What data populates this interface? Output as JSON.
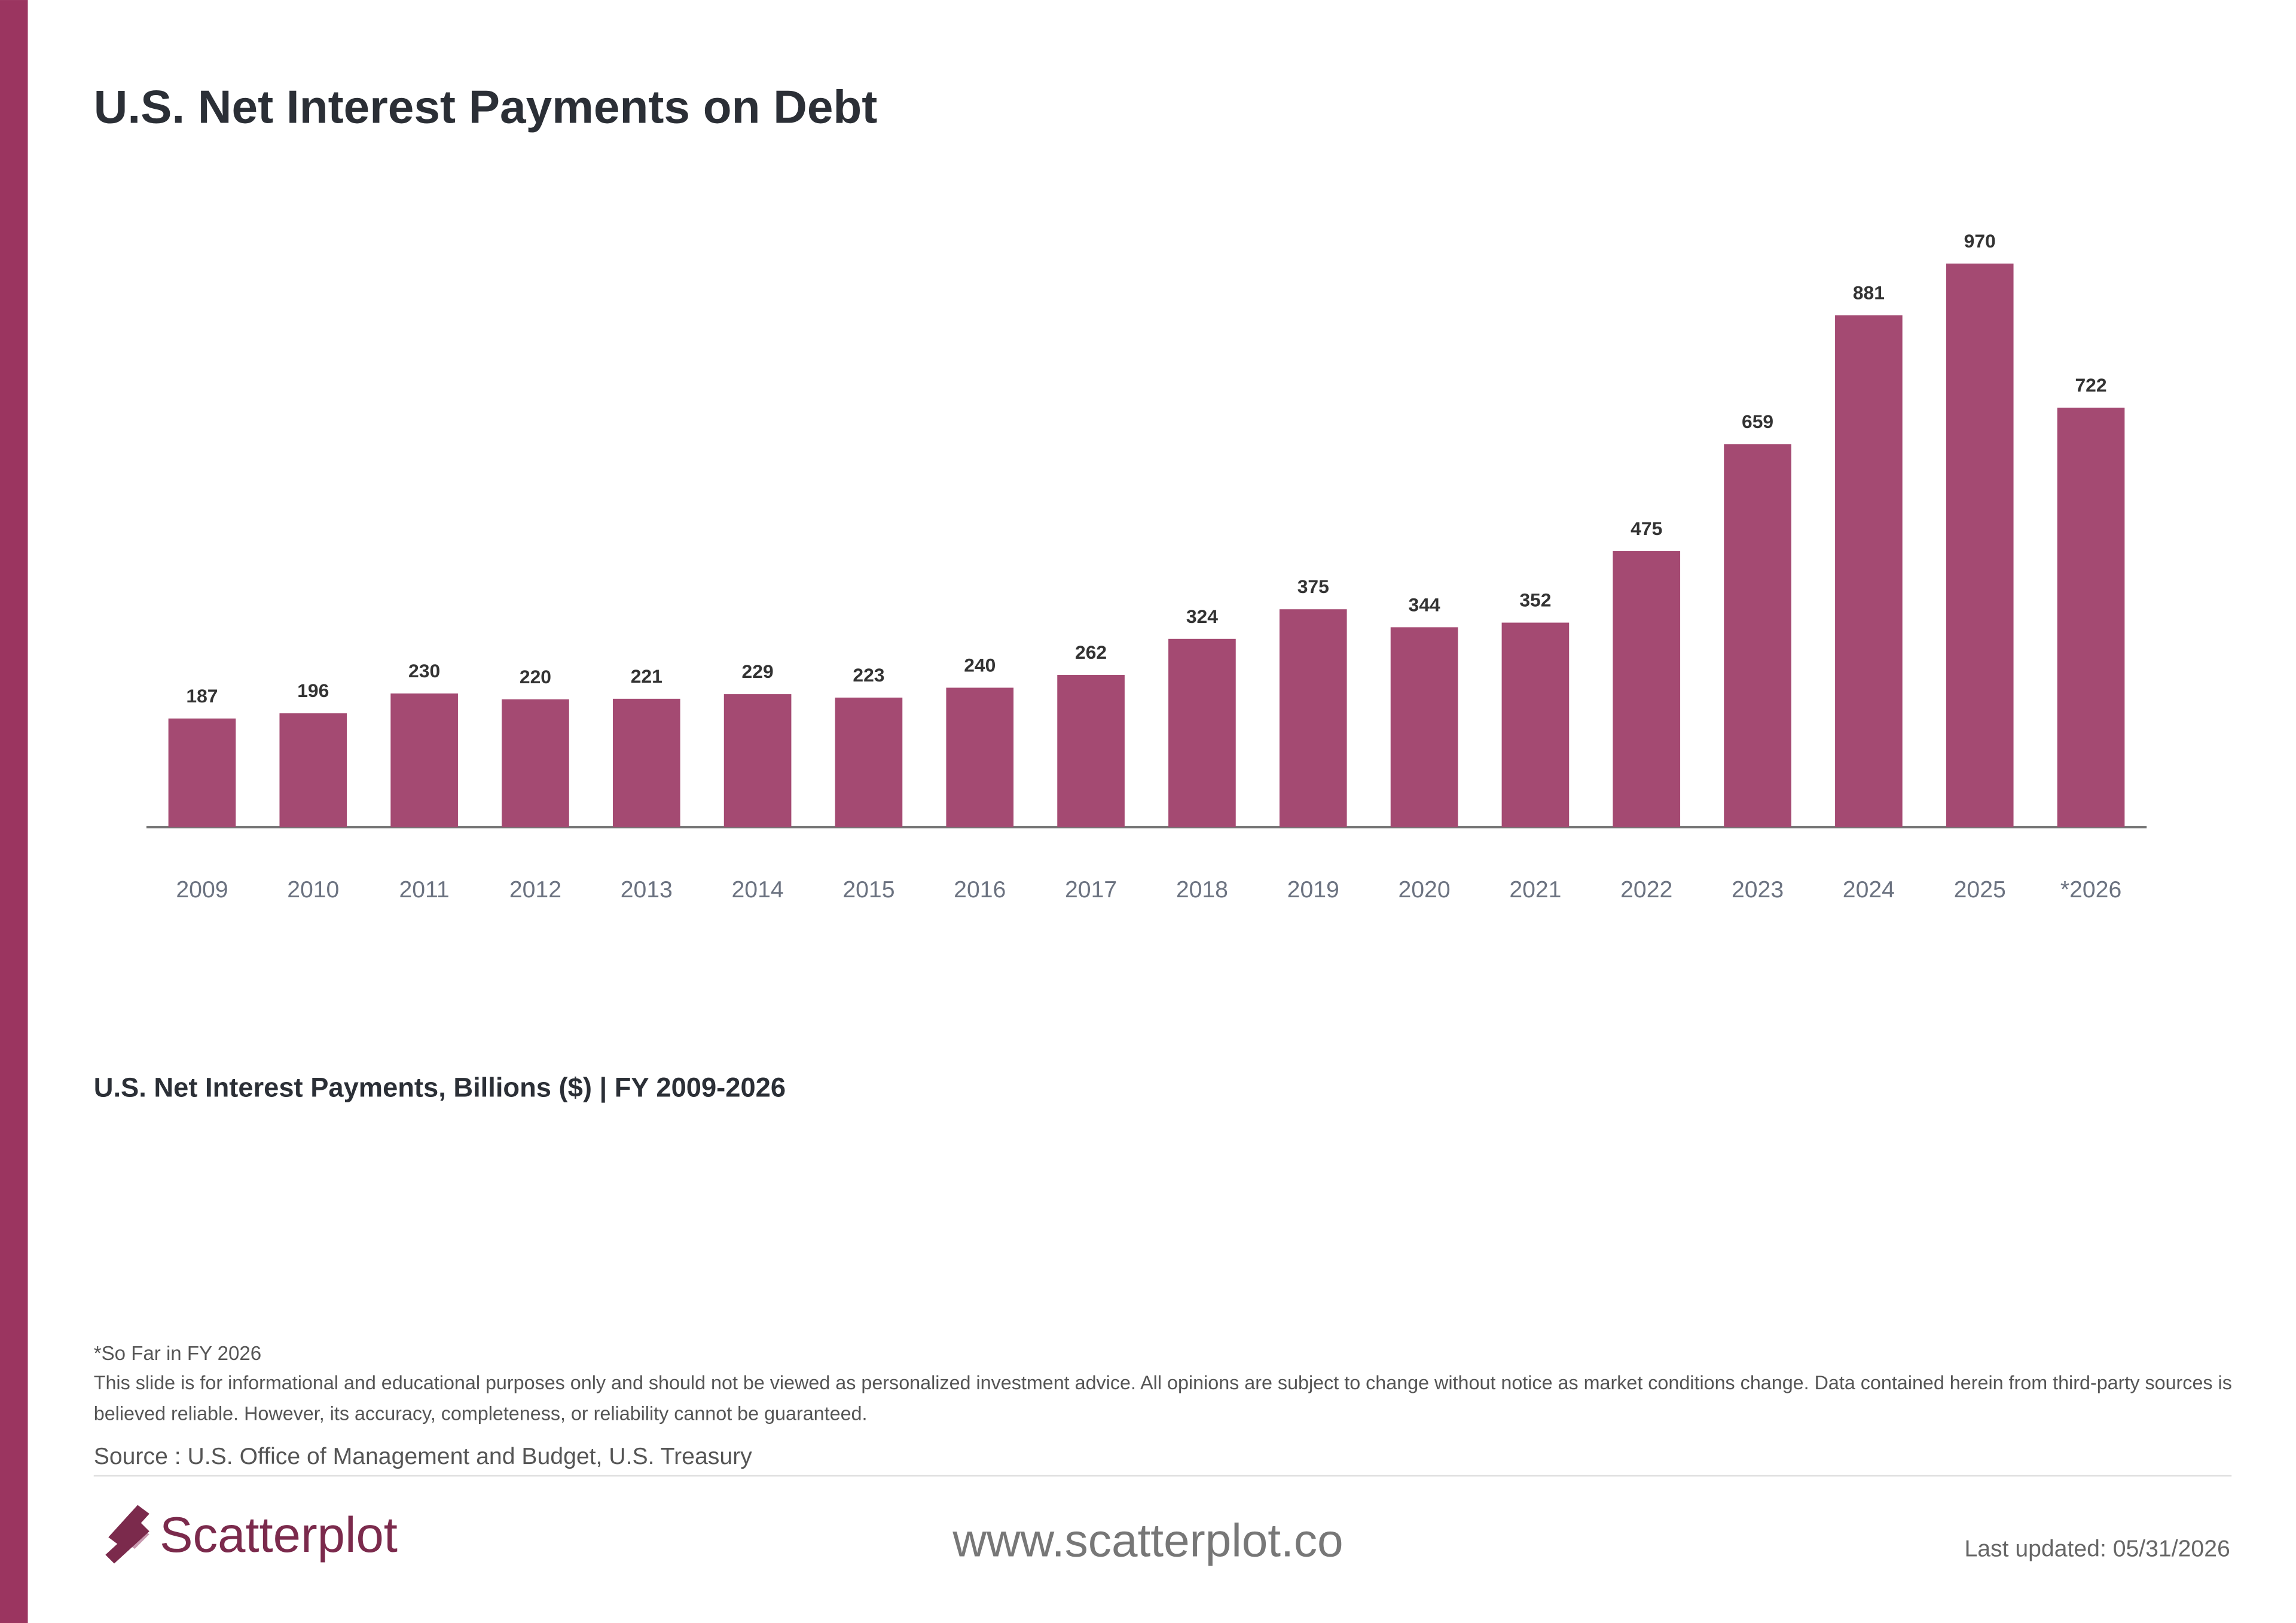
{
  "chart_data": {
    "type": "bar",
    "title": "U.S. Net Interest Payments on Debt",
    "subtitle": "U.S. Net Interest Payments, Billions ($) | FY 2009-2026",
    "categories": [
      "2009",
      "2010",
      "2011",
      "2012",
      "2013",
      "2014",
      "2015",
      "2016",
      "2017",
      "2018",
      "2019",
      "2020",
      "2021",
      "2022",
      "2023",
      "2024",
      "2025",
      "*2026"
    ],
    "values": [
      187,
      196,
      230,
      220,
      221,
      229,
      223,
      240,
      262,
      324,
      375,
      344,
      352,
      475,
      659,
      881,
      970,
      722
    ],
    "color": "#a44a72"
  },
  "footer": {
    "footnote": "*So Far in FY 2026",
    "disclaimer": "This slide is for informational and educational purposes only and should not be viewed as personalized investment advice. All opinions are subject to change without notice as market conditions change. Data contained herein from third-party sources is believed reliable. However, its accuracy, completeness, or reliability cannot be guaranteed.",
    "source": "Source : U.S. Office of Management and Budget, U.S. Treasury",
    "logo": "Scatterplot",
    "website": "www.scatterplot.co",
    "updated": "Last updated: 05/31/2026"
  }
}
